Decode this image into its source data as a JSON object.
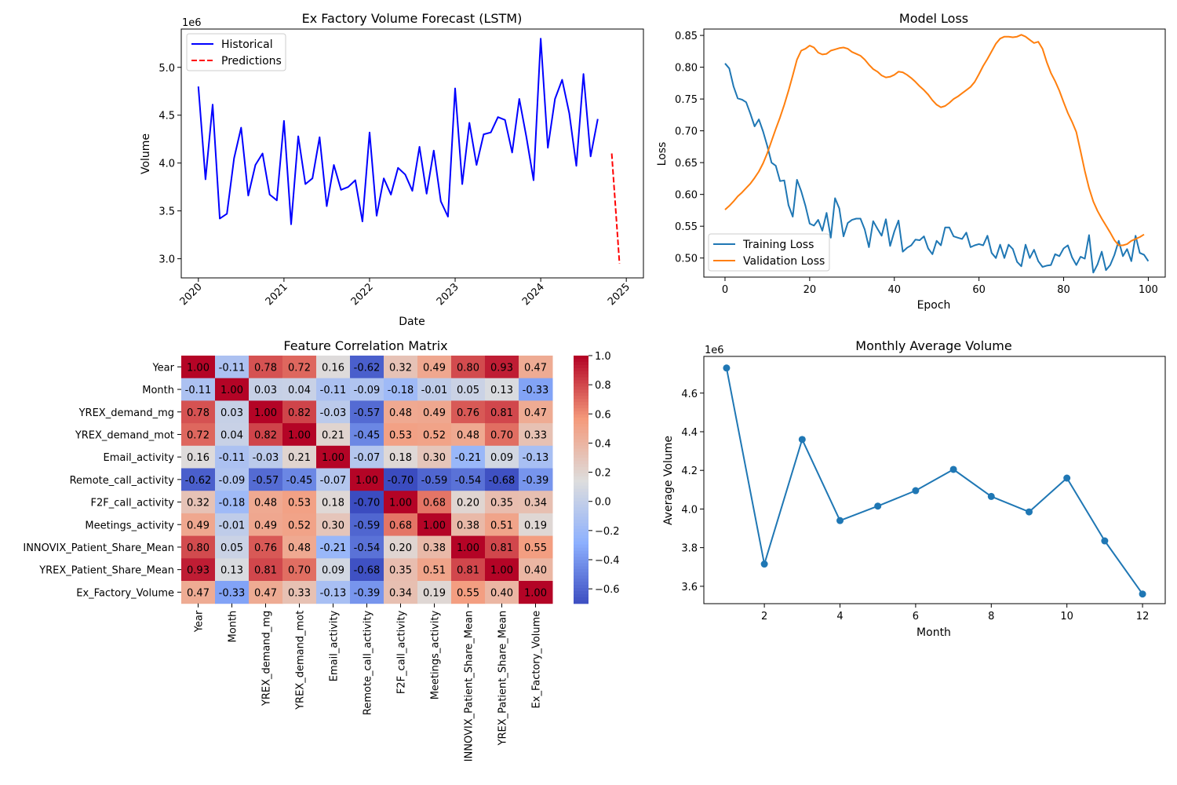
{
  "chart_data": [
    {
      "type": "line",
      "title": "Ex Factory Volume Forecast (LSTM)",
      "xlabel": "Date",
      "ylabel": "Volume",
      "y_offset_label": "1e6",
      "xlim": [
        2019.8,
        2025.2
      ],
      "ylim": [
        2800000,
        5400000
      ],
      "xticks": [
        2020,
        2021,
        2022,
        2023,
        2024,
        2025
      ],
      "yticks": [
        3000000,
        3500000,
        4000000,
        4500000,
        5000000
      ],
      "ytick_labels": [
        "3.0",
        "3.5",
        "4.0",
        "4.5",
        "5.0"
      ],
      "legend_position": "upper-left",
      "grid": false,
      "series": [
        {
          "name": "Historical",
          "color": "#0000ff",
          "dash": "solid",
          "x_start": 2020.0,
          "x_step": 0.08333,
          "values": [
            4800000,
            3830000,
            4610000,
            3420000,
            3470000,
            4050000,
            4370000,
            3660000,
            3980000,
            4100000,
            3670000,
            3610000,
            4440000,
            3360000,
            4280000,
            3780000,
            3840000,
            4270000,
            3550000,
            3980000,
            3720000,
            3750000,
            3820000,
            3390000,
            4320000,
            3450000,
            3840000,
            3670000,
            3950000,
            3880000,
            3710000,
            4170000,
            3680000,
            4130000,
            3600000,
            3440000,
            4780000,
            3780000,
            4420000,
            3980000,
            4300000,
            4320000,
            4480000,
            4450000,
            4110000,
            4670000,
            4270000,
            3820000,
            5300000,
            4160000,
            4670000,
            4870000,
            4520000,
            3970000,
            4930000,
            4070000,
            4460000
          ]
        },
        {
          "name": "Predictions",
          "color": "#ff0000",
          "dash": "dashed",
          "x": [
            2024.83,
            2024.92
          ],
          "values": [
            4100000,
            2950000
          ]
        }
      ]
    },
    {
      "type": "line",
      "title": "Model Loss",
      "xlabel": "Epoch",
      "ylabel": "Loss",
      "xlim": [
        -5,
        104
      ],
      "ylim": [
        0.47,
        0.86
      ],
      "xticks": [
        0,
        20,
        40,
        60,
        80,
        100
      ],
      "yticks": [
        0.5,
        0.55,
        0.6,
        0.65,
        0.7,
        0.75,
        0.8,
        0.85
      ],
      "ytick_labels": [
        "0.50",
        "0.55",
        "0.60",
        "0.65",
        "0.70",
        "0.75",
        "0.80",
        "0.85"
      ],
      "legend_position": "lower-left",
      "grid": false,
      "series": [
        {
          "name": "Training Loss",
          "color": "#1f77b4",
          "x_start": 0,
          "x_step": 1,
          "values": [
            0.806,
            0.798,
            0.77,
            0.751,
            0.749,
            0.745,
            0.727,
            0.707,
            0.718,
            0.699,
            0.676,
            0.65,
            0.645,
            0.621,
            0.622,
            0.583,
            0.565,
            0.623,
            0.605,
            0.582,
            0.554,
            0.551,
            0.56,
            0.543,
            0.571,
            0.532,
            0.594,
            0.578,
            0.534,
            0.555,
            0.56,
            0.562,
            0.562,
            0.545,
            0.517,
            0.558,
            0.546,
            0.535,
            0.561,
            0.519,
            0.542,
            0.559,
            0.51,
            0.516,
            0.52,
            0.529,
            0.528,
            0.534,
            0.515,
            0.506,
            0.527,
            0.52,
            0.548,
            0.548,
            0.534,
            0.532,
            0.53,
            0.54,
            0.517,
            0.52,
            0.522,
            0.52,
            0.535,
            0.508,
            0.5,
            0.521,
            0.5,
            0.521,
            0.514,
            0.494,
            0.487,
            0.521,
            0.5,
            0.513,
            0.495,
            0.486,
            0.488,
            0.489,
            0.506,
            0.503,
            0.515,
            0.52,
            0.501,
            0.489,
            0.502,
            0.499,
            0.536,
            0.477,
            0.49,
            0.51,
            0.481,
            0.489,
            0.505,
            0.527,
            0.503,
            0.514,
            0.495,
            0.535,
            0.508,
            0.505,
            0.495
          ]
        },
        {
          "name": "Validation Loss",
          "color": "#ff7f0e",
          "x_start": 0,
          "x_step": 1,
          "values": [
            0.576,
            0.582,
            0.589,
            0.597,
            0.603,
            0.61,
            0.617,
            0.626,
            0.636,
            0.649,
            0.665,
            0.684,
            0.703,
            0.721,
            0.741,
            0.763,
            0.787,
            0.812,
            0.826,
            0.829,
            0.834,
            0.831,
            0.823,
            0.82,
            0.821,
            0.826,
            0.828,
            0.83,
            0.831,
            0.829,
            0.824,
            0.821,
            0.818,
            0.812,
            0.804,
            0.797,
            0.793,
            0.787,
            0.784,
            0.785,
            0.788,
            0.793,
            0.792,
            0.788,
            0.783,
            0.777,
            0.77,
            0.764,
            0.757,
            0.748,
            0.741,
            0.737,
            0.739,
            0.744,
            0.75,
            0.754,
            0.759,
            0.764,
            0.769,
            0.777,
            0.789,
            0.802,
            0.813,
            0.825,
            0.837,
            0.845,
            0.848,
            0.848,
            0.847,
            0.848,
            0.851,
            0.848,
            0.843,
            0.838,
            0.84,
            0.829,
            0.808,
            0.791,
            0.778,
            0.763,
            0.745,
            0.728,
            0.714,
            0.698,
            0.668,
            0.637,
            0.61,
            0.589,
            0.574,
            0.562,
            0.551,
            0.54,
            0.528,
            0.52,
            0.52,
            0.522,
            0.527,
            0.53,
            0.533,
            0.537
          ]
        }
      ]
    },
    {
      "type": "heatmap",
      "title": "Feature Correlation Matrix",
      "labels": [
        "Year",
        "Month",
        "YREX_demand_mg",
        "YREX_demand_mot",
        "Email_activity",
        "Remote_call_activity",
        "F2F_call_activity",
        "Meetings_activity",
        "INNOVIX_Patient_Share_Mean",
        "YREX_Patient_Share_Mean",
        "Ex_Factory_Volume"
      ],
      "colormap": "coolwarm",
      "vmin": -0.7,
      "vmax": 1.0,
      "colorbar_ticks": [
        1.0,
        0.8,
        0.6,
        0.4,
        0.2,
        0.0,
        -0.2,
        -0.4,
        -0.6
      ],
      "colorbar_tick_labels": [
        "1.0",
        "0.8",
        "0.6",
        "0.4",
        "0.2",
        "0.0",
        "−0.2",
        "−0.4",
        "−0.6"
      ],
      "values": [
        [
          1.0,
          -0.11,
          0.78,
          0.72,
          0.16,
          -0.62,
          0.32,
          0.49,
          0.8,
          0.93,
          0.47
        ],
        [
          -0.11,
          1.0,
          0.03,
          0.04,
          -0.11,
          -0.09,
          -0.18,
          -0.01,
          0.05,
          0.13,
          -0.33
        ],
        [
          0.78,
          0.03,
          1.0,
          0.82,
          -0.03,
          -0.57,
          0.48,
          0.49,
          0.76,
          0.81,
          0.47
        ],
        [
          0.72,
          0.04,
          0.82,
          1.0,
          0.21,
          -0.45,
          0.53,
          0.52,
          0.48,
          0.7,
          0.33
        ],
        [
          0.16,
          -0.11,
          -0.03,
          0.21,
          1.0,
          -0.07,
          0.18,
          0.3,
          -0.21,
          0.09,
          -0.13
        ],
        [
          -0.62,
          -0.09,
          -0.57,
          -0.45,
          -0.07,
          1.0,
          -0.7,
          -0.59,
          -0.54,
          -0.68,
          -0.39
        ],
        [
          0.32,
          -0.18,
          0.48,
          0.53,
          0.18,
          -0.7,
          1.0,
          0.68,
          0.2,
          0.35,
          0.34
        ],
        [
          0.49,
          -0.01,
          0.49,
          0.52,
          0.3,
          -0.59,
          0.68,
          1.0,
          0.38,
          0.51,
          0.19
        ],
        [
          0.8,
          0.05,
          0.76,
          0.48,
          -0.21,
          -0.54,
          0.2,
          0.38,
          1.0,
          0.81,
          0.55
        ],
        [
          0.93,
          0.13,
          0.81,
          0.7,
          0.09,
          -0.68,
          0.35,
          0.51,
          0.81,
          1.0,
          0.4
        ],
        [
          0.47,
          -0.33,
          0.47,
          0.33,
          -0.13,
          -0.39,
          0.34,
          0.19,
          0.55,
          0.4,
          1.0
        ]
      ]
    },
    {
      "type": "line",
      "title": "Monthly Average Volume",
      "xlabel": "Month",
      "ylabel": "Average Volume",
      "y_offset_label": "1e6",
      "xlim": [
        0.4,
        12.6
      ],
      "ylim": [
        3510000,
        4790000
      ],
      "xticks": [
        2,
        4,
        6,
        8,
        10,
        12
      ],
      "yticks": [
        3600000,
        3800000,
        4000000,
        4200000,
        4400000,
        4600000
      ],
      "ytick_labels": [
        "3.6",
        "3.8",
        "4.0",
        "4.2",
        "4.4",
        "4.6"
      ],
      "grid": false,
      "markers": true,
      "series": [
        {
          "color": "#1f77b4",
          "x": [
            1,
            2,
            3,
            4,
            5,
            6,
            7,
            8,
            9,
            10,
            11,
            12
          ],
          "values": [
            4730000,
            3715000,
            4360000,
            3940000,
            4015000,
            4095000,
            4205000,
            4065000,
            3985000,
            4160000,
            3835000,
            3560000
          ]
        }
      ]
    }
  ]
}
